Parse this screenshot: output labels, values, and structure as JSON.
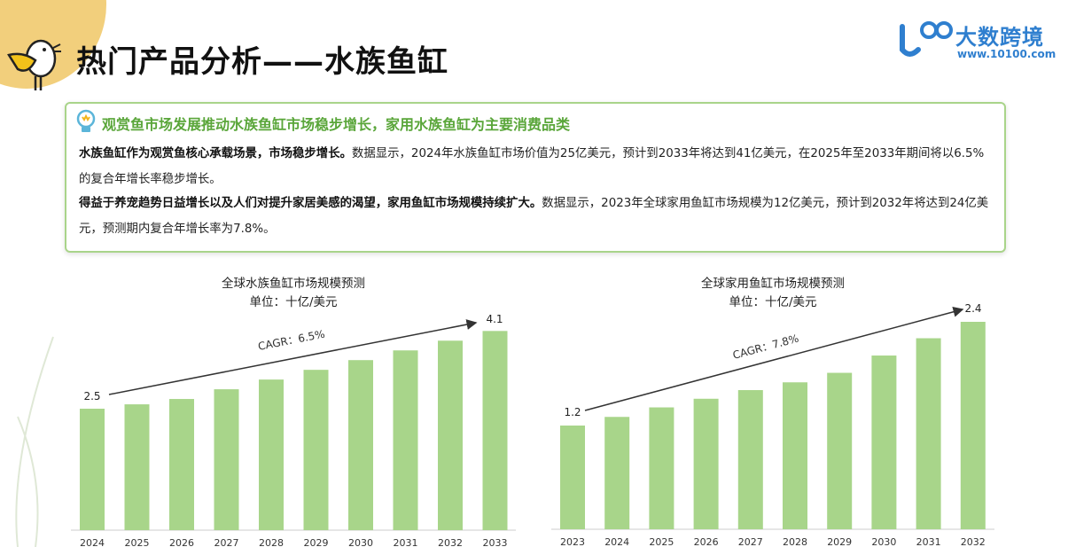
{
  "header": {
    "title": "热门产品分析——水族鱼缸",
    "logo_text": "大数跨境",
    "logo_url": "www.10100.com",
    "logo_mark": "100"
  },
  "summary": {
    "headline": "观赏鱼市场发展推动水族鱼缸市场稳步增长，家用水族鱼缸为主要消费品类",
    "p1_bold": "水族鱼缸作为观赏鱼核心承载场景，市场稳步增长。",
    "p1_text": "数据显示，2024年水族鱼缸市场价值为25亿美元，预计到2033年将达到41亿美元，在2025年至2033年期间将以6.5%的复合年增长率稳步增长。",
    "p2_bold": "得益于养宠趋势日益增长以及人们对提升家居美感的渴望，家用鱼缸市场规模持续扩大。",
    "p2_text": "数据显示，2023年全球家用鱼缸市场规模为12亿美元，预计到2032年将达到24亿美元，预测期内复合年增长率为7.8%。"
  },
  "colors": {
    "bar": "#a8d58a",
    "accent": "#5aa63a",
    "border": "#a9d48a",
    "logo": "#2f7fcf",
    "blob": "#f2cf7c"
  },
  "chart_data": [
    {
      "type": "bar",
      "title": "全球水族鱼缸市场规模预测",
      "subtitle": "单位：十亿/美元",
      "categories": [
        "2024",
        "2025",
        "2026",
        "2027",
        "2028",
        "2029",
        "2030",
        "2031",
        "2032",
        "2033"
      ],
      "values": [
        2.5,
        2.59,
        2.7,
        2.9,
        3.1,
        3.3,
        3.5,
        3.7,
        3.9,
        4.1
      ],
      "data_labels": {
        "first": "2.5",
        "last": "4.1"
      },
      "annotation": "CAGR：6.5%",
      "ylim": [
        0,
        4.5
      ],
      "grid": false
    },
    {
      "type": "bar",
      "title": "全球家用鱼缸市场规模预测",
      "subtitle": "单位：十亿/美元",
      "categories": [
        "2023",
        "2024",
        "2025",
        "2026",
        "2027",
        "2028",
        "2029",
        "2030",
        "2031",
        "2032"
      ],
      "values": [
        1.2,
        1.3,
        1.41,
        1.51,
        1.61,
        1.7,
        1.81,
        2.01,
        2.21,
        2.4
      ],
      "data_labels": {
        "first": "1.2",
        "last": "2.4"
      },
      "annotation": "CAGR：7.8%",
      "ylim": [
        0,
        2.6
      ],
      "grid": false
    }
  ]
}
